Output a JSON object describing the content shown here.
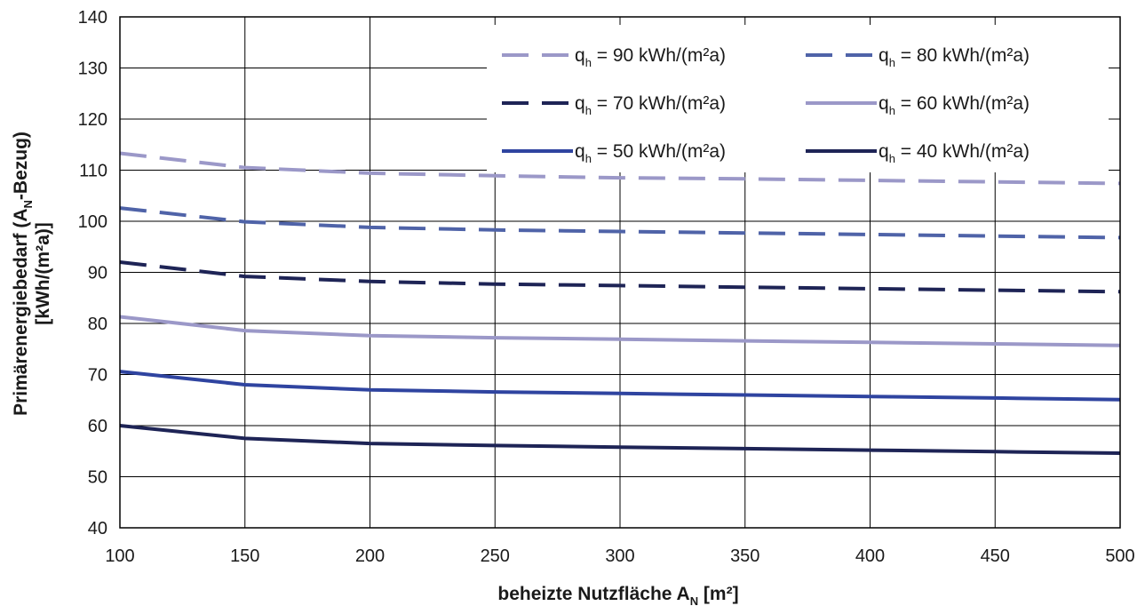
{
  "chart_data": {
    "type": "line",
    "xlabel_main": "beheizte Nutzfläche A",
    "xlabel_sub": "N",
    "xlabel_unit": " [m²]",
    "ylabel_line1_main": "Primärenergiebedarf (A",
    "ylabel_line1_sub": "N",
    "ylabel_line1_tail": "-Bezug)",
    "ylabel_line2": "[kWh/(m²a)]",
    "x": [
      100,
      150,
      200,
      250,
      300,
      350,
      400,
      450,
      500
    ],
    "xlim": [
      100,
      500
    ],
    "ylim": [
      40,
      140
    ],
    "x_ticks": [
      100,
      150,
      200,
      250,
      300,
      350,
      400,
      450,
      500
    ],
    "y_ticks": [
      40,
      50,
      60,
      70,
      80,
      90,
      100,
      110,
      120,
      130,
      140
    ],
    "grid": true,
    "legend_position": "top-right",
    "series": [
      {
        "name": "q",
        "name_sub": "h",
        "name_tail": " = 90 kWh/(m²a)",
        "color": "#9b98c8",
        "dash": "dashed",
        "values": [
          113.3,
          110.5,
          109.4,
          108.9,
          108.5,
          108.3,
          108.0,
          107.7,
          107.4
        ]
      },
      {
        "name": "q",
        "name_sub": "h",
        "name_tail": " = 80 kWh/(m²a)",
        "color": "#4f63a8",
        "dash": "dashed",
        "values": [
          102.6,
          99.9,
          98.8,
          98.3,
          98.0,
          97.7,
          97.4,
          97.1,
          96.8
        ]
      },
      {
        "name": "q",
        "name_sub": "h",
        "name_tail": " = 70 kWh/(m²a)",
        "color": "#1e2456",
        "dash": "dashed",
        "values": [
          92.0,
          89.2,
          88.2,
          87.7,
          87.4,
          87.1,
          86.8,
          86.5,
          86.2
        ]
      },
      {
        "name": "q",
        "name_sub": "h",
        "name_tail": " = 60 kWh/(m²a)",
        "color": "#9b98c8",
        "dash": "solid",
        "values": [
          81.3,
          78.6,
          77.6,
          77.2,
          76.9,
          76.6,
          76.3,
          76.0,
          75.7
        ]
      },
      {
        "name": "q",
        "name_sub": "h",
        "name_tail": " = 50 kWh/(m²a)",
        "color": "#2f44a0",
        "dash": "solid",
        "values": [
          70.6,
          68.0,
          67.0,
          66.6,
          66.3,
          66.0,
          65.7,
          65.4,
          65.1
        ]
      },
      {
        "name": "q",
        "name_sub": "h",
        "name_tail": " = 40 kWh/(m²a)",
        "color": "#1e2456",
        "dash": "solid",
        "values": [
          60.0,
          57.5,
          56.5,
          56.1,
          55.8,
          55.5,
          55.2,
          54.9,
          54.6
        ]
      }
    ]
  }
}
